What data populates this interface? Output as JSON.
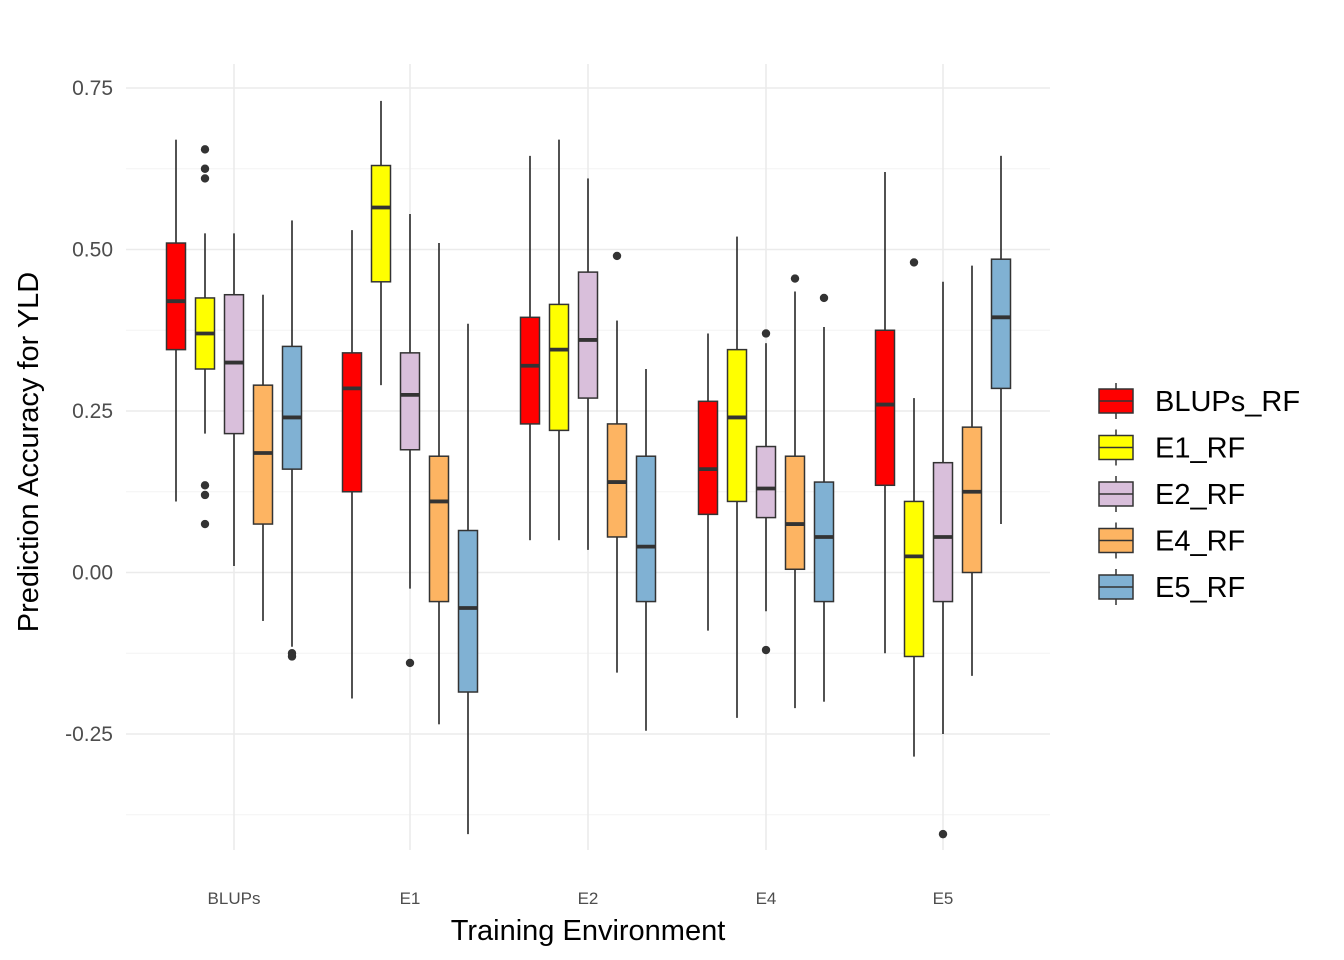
{
  "chart_data": {
    "type": "boxplot",
    "xlabel": "Training Environment",
    "ylabel": "Prediction Accuracy for YLD",
    "ylim": [
      -0.4,
      0.76
    ],
    "y_ticks": [
      -0.25,
      0.0,
      0.25,
      0.5,
      0.75
    ],
    "y_tick_labels": [
      "-0.25",
      "0.00",
      "0.25",
      "0.50",
      "0.75"
    ],
    "categories": [
      "BLUPs",
      "E1",
      "E2",
      "E4",
      "E5"
    ],
    "grid": true,
    "legend_position": "right",
    "series": [
      {
        "name": "BLUPs_RF",
        "color": "#ff0000",
        "boxes": [
          {
            "low": 0.11,
            "q1": 0.345,
            "median": 0.42,
            "q3": 0.51,
            "high": 0.67,
            "outliers": []
          },
          {
            "low": -0.195,
            "q1": 0.125,
            "median": 0.285,
            "q3": 0.34,
            "high": 0.53,
            "outliers": []
          },
          {
            "low": 0.05,
            "q1": 0.23,
            "median": 0.32,
            "q3": 0.395,
            "high": 0.645,
            "outliers": []
          },
          {
            "low": -0.09,
            "q1": 0.09,
            "median": 0.16,
            "q3": 0.265,
            "high": 0.37,
            "outliers": []
          },
          {
            "low": -0.125,
            "q1": 0.135,
            "median": 0.26,
            "q3": 0.375,
            "high": 0.62,
            "outliers": []
          }
        ]
      },
      {
        "name": "E1_RF",
        "color": "#ffff00",
        "boxes": [
          {
            "low": 0.215,
            "q1": 0.315,
            "median": 0.37,
            "q3": 0.425,
            "high": 0.525,
            "outliers": [
              0.655,
              0.625,
              0.61,
              0.135,
              0.12,
              0.075
            ]
          },
          {
            "low": 0.29,
            "q1": 0.45,
            "median": 0.565,
            "q3": 0.63,
            "high": 0.73,
            "outliers": []
          },
          {
            "low": 0.05,
            "q1": 0.22,
            "median": 0.345,
            "q3": 0.415,
            "high": 0.67,
            "outliers": []
          },
          {
            "low": -0.225,
            "q1": 0.11,
            "median": 0.24,
            "q3": 0.345,
            "high": 0.52,
            "outliers": []
          },
          {
            "low": -0.285,
            "q1": -0.13,
            "median": 0.025,
            "q3": 0.11,
            "high": 0.27,
            "outliers": [
              0.48
            ]
          }
        ]
      },
      {
        "name": "E2_RF",
        "color": "#d9bfdb",
        "boxes": [
          {
            "low": 0.01,
            "q1": 0.215,
            "median": 0.325,
            "q3": 0.43,
            "high": 0.525,
            "outliers": []
          },
          {
            "low": -0.025,
            "q1": 0.19,
            "median": 0.275,
            "q3": 0.34,
            "high": 0.555,
            "outliers": [
              -0.14
            ]
          },
          {
            "low": 0.035,
            "q1": 0.27,
            "median": 0.36,
            "q3": 0.465,
            "high": 0.61,
            "outliers": []
          },
          {
            "low": -0.06,
            "q1": 0.085,
            "median": 0.13,
            "q3": 0.195,
            "high": 0.355,
            "outliers": [
              0.37,
              -0.12
            ]
          },
          {
            "low": -0.25,
            "q1": -0.045,
            "median": 0.055,
            "q3": 0.17,
            "high": 0.45,
            "outliers": [
              -0.405
            ]
          }
        ]
      },
      {
        "name": "E4_RF",
        "color": "#fdb462",
        "boxes": [
          {
            "low": -0.075,
            "q1": 0.075,
            "median": 0.185,
            "q3": 0.29,
            "high": 0.43,
            "outliers": []
          },
          {
            "low": -0.235,
            "q1": -0.045,
            "median": 0.11,
            "q3": 0.18,
            "high": 0.51,
            "outliers": []
          },
          {
            "low": -0.155,
            "q1": 0.055,
            "median": 0.14,
            "q3": 0.23,
            "high": 0.39,
            "outliers": [
              0.49
            ]
          },
          {
            "low": -0.21,
            "q1": 0.005,
            "median": 0.075,
            "q3": 0.18,
            "high": 0.435,
            "outliers": [
              0.455
            ]
          },
          {
            "low": -0.16,
            "q1": 0.0,
            "median": 0.125,
            "q3": 0.225,
            "high": 0.475,
            "outliers": []
          }
        ]
      },
      {
        "name": "E5_RF",
        "color": "#80b1d3",
        "boxes": [
          {
            "low": -0.115,
            "q1": 0.16,
            "median": 0.24,
            "q3": 0.35,
            "high": 0.545,
            "outliers": [
              -0.125,
              -0.13
            ]
          },
          {
            "low": -0.405,
            "q1": -0.185,
            "median": -0.055,
            "q3": 0.065,
            "high": 0.385,
            "outliers": []
          },
          {
            "low": -0.245,
            "q1": -0.045,
            "median": 0.04,
            "q3": 0.18,
            "high": 0.315,
            "outliers": []
          },
          {
            "low": -0.2,
            "q1": -0.045,
            "median": 0.055,
            "q3": 0.14,
            "high": 0.38,
            "outliers": [
              0.425
            ]
          },
          {
            "low": 0.075,
            "q1": 0.285,
            "median": 0.395,
            "q3": 0.485,
            "high": 0.645,
            "outliers": []
          }
        ]
      }
    ]
  }
}
